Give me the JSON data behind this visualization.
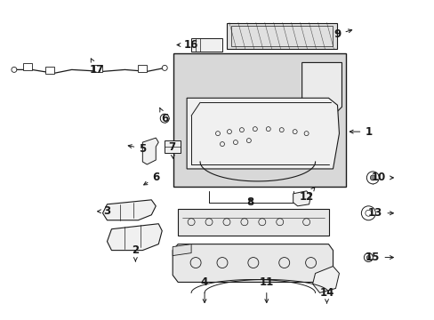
{
  "bg_color": "#ffffff",
  "line_color": "#1a1a1a",
  "fig_width": 4.89,
  "fig_height": 3.6,
  "dpi": 100,
  "label_fontsize": 8.5,
  "label_fontsize_sm": 7.5
}
